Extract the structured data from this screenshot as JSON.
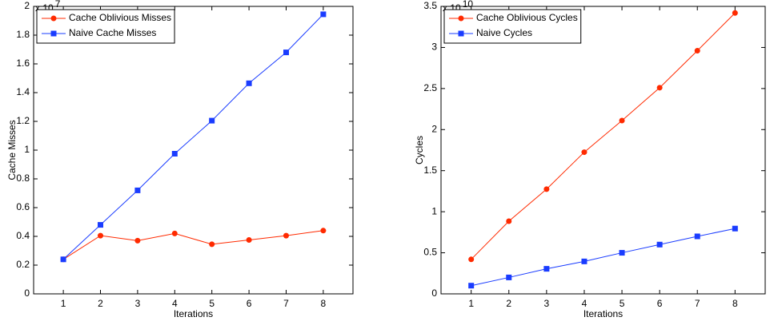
{
  "chart_data": [
    {
      "type": "line",
      "xlabel": "Iterations",
      "ylabel": "Cache Misses",
      "y_scale_base": "x 10",
      "y_scale_exponent": "7",
      "x": [
        1,
        2,
        3,
        4,
        5,
        6,
        7,
        8
      ],
      "xlim": [
        0.2,
        8.8
      ],
      "xticks": [
        1,
        2,
        3,
        4,
        5,
        6,
        7,
        8
      ],
      "ylim": [
        0,
        2
      ],
      "yticks": [
        0,
        0.2,
        0.4,
        0.6,
        0.8,
        1,
        1.2,
        1.4,
        1.6,
        1.8,
        2
      ],
      "legend": "upper-left",
      "series": [
        {
          "name": "Cache Oblivious Misses",
          "color": "#ff2a00",
          "marker": "circle",
          "values": [
            0.24,
            0.405,
            0.37,
            0.42,
            0.345,
            0.375,
            0.405,
            0.44
          ]
        },
        {
          "name": "Naive Cache Misses",
          "color": "#1a3cff",
          "marker": "square",
          "values": [
            0.24,
            0.48,
            0.72,
            0.975,
            1.205,
            1.465,
            1.68,
            1.945
          ]
        }
      ]
    },
    {
      "type": "line",
      "xlabel": "Iterations",
      "ylabel": "Cycles",
      "y_scale_base": "x 10",
      "y_scale_exponent": "10",
      "x": [
        1,
        2,
        3,
        4,
        5,
        6,
        7,
        8
      ],
      "xlim": [
        0.2,
        8.8
      ],
      "xticks": [
        1,
        2,
        3,
        4,
        5,
        6,
        7,
        8
      ],
      "ylim": [
        0,
        3.5
      ],
      "yticks": [
        0,
        0.5,
        1,
        1.5,
        2,
        2.5,
        3,
        3.5
      ],
      "legend": "upper-left",
      "series": [
        {
          "name": "Cache Oblivious Cycles",
          "color": "#ff2a00",
          "marker": "circle",
          "values": [
            0.42,
            0.885,
            1.275,
            1.725,
            2.11,
            2.51,
            2.96,
            3.42
          ]
        },
        {
          "name": "Naive Cycles",
          "color": "#1a3cff",
          "marker": "square",
          "values": [
            0.1,
            0.2,
            0.305,
            0.395,
            0.5,
            0.6,
            0.7,
            0.795
          ]
        }
      ]
    }
  ]
}
